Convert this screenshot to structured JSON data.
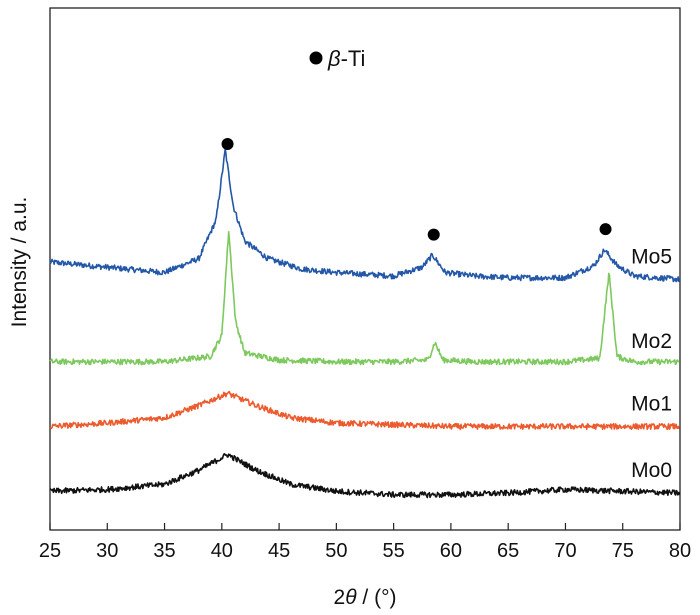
{
  "chart_data": {
    "type": "line",
    "title": "",
    "xlabel_prefix": "2",
    "xlabel_symbol": "θ",
    "xlabel_suffix": " / (°)",
    "ylabel": "Intensity / a.u.",
    "xlim": [
      25,
      80
    ],
    "ylim": [
      0,
      100
    ],
    "y_units": "arbitrary",
    "xticks": [
      25,
      30,
      35,
      40,
      45,
      50,
      55,
      60,
      65,
      70,
      75,
      80
    ],
    "yticks_shown": false,
    "grid": false,
    "legend": {
      "marker": "filled-circle",
      "symbol": "β",
      "text": "-Ti",
      "placement": "top-center"
    },
    "peak_markers": [
      40.5,
      58.5,
      73.5
    ],
    "series": [
      {
        "name": "Mo5",
        "color": "#2357a8",
        "x": [
          25,
          30,
          35,
          38,
          39.5,
          40.3,
          41,
          42,
          44,
          47,
          50,
          55,
          57.5,
          58.4,
          59.5,
          62,
          65,
          70,
          72.5,
          73.4,
          74.5,
          76,
          80
        ],
        "y": [
          68,
          66.5,
          65,
          69,
          80,
          100,
          84,
          74,
          69,
          66,
          65,
          64,
          66.5,
          70,
          65,
          64,
          63.5,
          63.5,
          67,
          71.5,
          67,
          64,
          63
        ]
      },
      {
        "name": "Mo2",
        "color": "#7dc95e",
        "x": [
          25,
          35,
          39,
          40,
          40.6,
          41.2,
          42,
          45,
          50,
          55,
          58,
          58.6,
          59.3,
          62,
          70,
          73,
          73.8,
          74.5,
          76,
          80
        ],
        "y": [
          39.5,
          39.5,
          41,
          47,
          77,
          51,
          42,
          40,
          39.5,
          39.5,
          40,
          45,
          40,
          39.5,
          39.5,
          40.5,
          65,
          41,
          39.5,
          39.5
        ]
      },
      {
        "name": "Mo1",
        "color": "#ec5b2d",
        "x": [
          25,
          30,
          35,
          38,
          40.5,
          43,
          46,
          50,
          60,
          70,
          80
        ],
        "y": [
          21,
          22,
          23.5,
          27,
          30.5,
          27,
          23.5,
          22,
          21,
          21,
          21
        ]
      },
      {
        "name": "Mo0",
        "color": "#111111",
        "x": [
          25,
          30,
          35,
          38,
          40.5,
          43,
          46,
          50,
          55,
          60,
          65,
          70,
          75,
          80
        ],
        "y": [
          2.5,
          3,
          4.5,
          8.5,
          13,
          8.5,
          4.5,
          2.5,
          1.5,
          1.5,
          2,
          3,
          2.5,
          2
        ]
      }
    ]
  }
}
